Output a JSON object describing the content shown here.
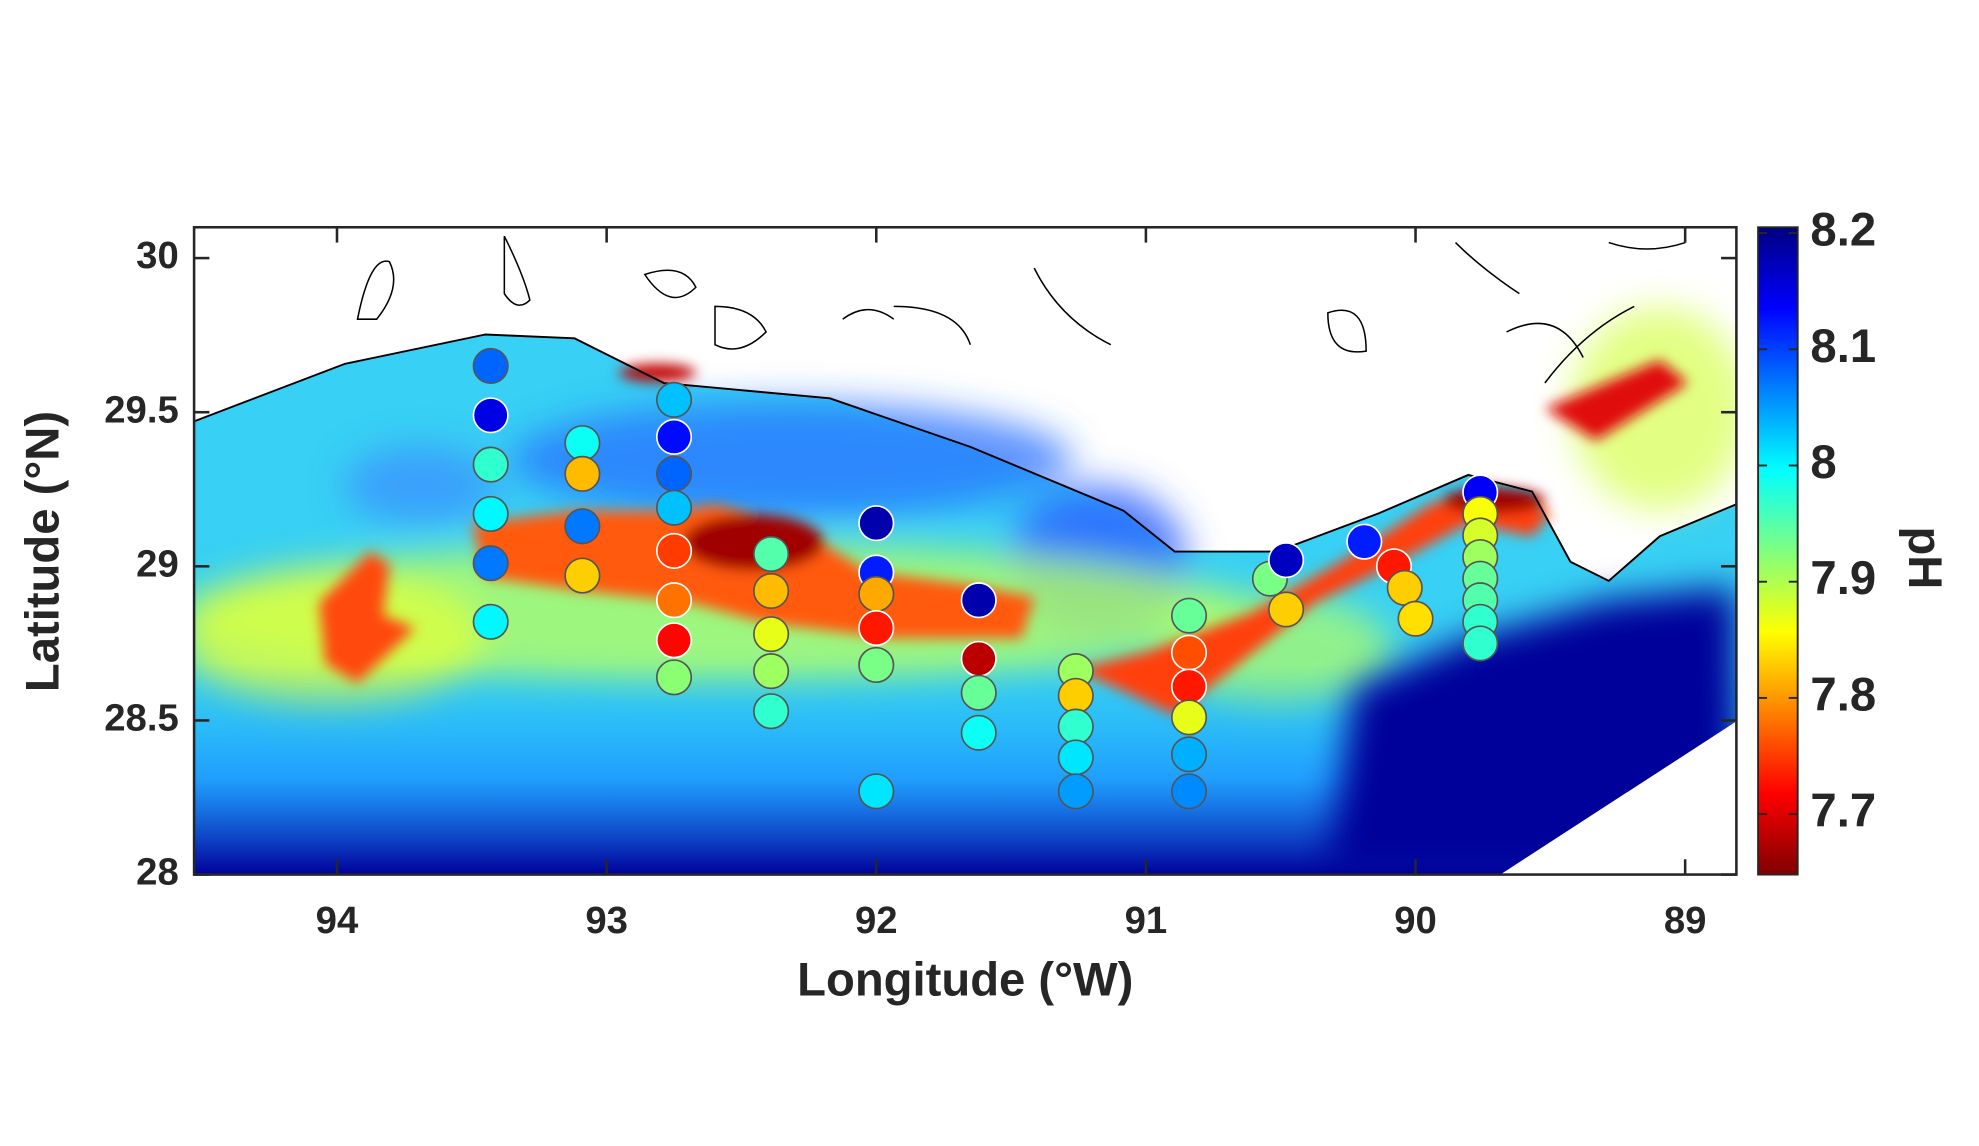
{
  "chart_data": {
    "type": "scatter",
    "xlabel": "Longitude (°W)",
    "ylabel": "Latitude (°N)",
    "colorbar_label": "pH",
    "xlim": [
      94.53,
      88.81
    ],
    "xticks": [
      94,
      93,
      92,
      91,
      90,
      89
    ],
    "ylim": [
      28,
      30.1
    ],
    "yticks": [
      28,
      28.5,
      29,
      29.5,
      30
    ],
    "colormap": "jet-reversed",
    "clim": [
      7.648,
      8.205
    ],
    "cticks": [
      7.7,
      7.8,
      7.9,
      8,
      8.1,
      8.2
    ],
    "x": [
      93.43,
      93.43,
      93.43,
      93.43,
      93.43,
      93.43,
      93.09,
      93.09,
      93.09,
      93.09,
      92.75,
      92.75,
      92.75,
      92.75,
      92.75,
      92.75,
      92.75,
      92.75,
      92.39,
      92.39,
      92.39,
      92.39,
      92.39,
      92.0,
      92.0,
      92.0,
      92.0,
      92.0,
      92.0,
      91.62,
      91.62,
      91.62,
      91.62,
      91.26,
      91.26,
      91.26,
      91.26,
      91.26,
      90.84,
      90.84,
      90.84,
      90.84,
      90.84,
      90.84,
      90.54,
      90.48,
      90.48,
      90.19,
      90.08,
      90.04,
      90.0,
      89.76,
      89.76,
      89.76,
      89.76,
      89.76,
      89.76,
      89.76,
      89.76
    ],
    "y": [
      29.65,
      29.49,
      29.33,
      29.17,
      29.01,
      28.82,
      29.4,
      29.3,
      29.13,
      28.97,
      29.54,
      29.42,
      29.3,
      29.19,
      29.05,
      28.89,
      28.76,
      28.64,
      29.04,
      28.92,
      28.78,
      28.66,
      28.53,
      29.14,
      28.98,
      28.91,
      28.8,
      28.68,
      28.27,
      28.89,
      28.7,
      28.59,
      28.46,
      28.66,
      28.58,
      28.48,
      28.38,
      28.27,
      28.84,
      28.72,
      28.61,
      28.51,
      28.39,
      28.27,
      28.96,
      29.02,
      28.86,
      29.08,
      29.0,
      28.93,
      28.83,
      29.24,
      29.17,
      29.1,
      29.03,
      28.96,
      28.89,
      28.82,
      28.75
    ],
    "values": [
      8.08,
      8.15,
      7.97,
      8.0,
      8.07,
      8.0,
      7.99,
      7.82,
      8.07,
      7.83,
      8.03,
      8.13,
      8.08,
      8.03,
      7.75,
      7.78,
      7.72,
      7.92,
      7.95,
      7.82,
      7.87,
      7.91,
      7.97,
      8.18,
      8.12,
      7.81,
      7.73,
      7.93,
      8.01,
      8.18,
      7.68,
      7.94,
      7.99,
      7.91,
      7.83,
      7.97,
      8.01,
      8.05,
      7.94,
      7.76,
      7.73,
      7.87,
      8.04,
      8.06,
      7.93,
      8.17,
      7.83,
      8.12,
      7.73,
      7.83,
      7.84,
      8.14,
      7.86,
      7.88,
      7.91,
      7.94,
      7.95,
      7.97,
      7.97
    ]
  }
}
